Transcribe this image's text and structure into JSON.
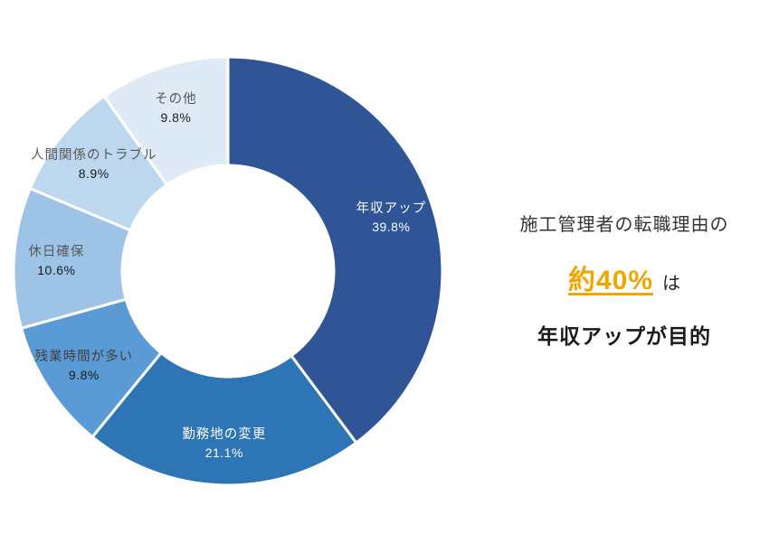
{
  "chart_data": {
    "type": "pie",
    "variant": "donut",
    "start_angle_deg": 0,
    "direction": "clockwise",
    "unit": "%",
    "segments": [
      {
        "label": "年収アップ",
        "value": 39.8,
        "display": "39.8%",
        "color": "#2F5597",
        "label_color": "#ffffff",
        "value_color": "#ffffff"
      },
      {
        "label": "勤務地の変更",
        "value": 21.1,
        "display": "21.1%",
        "color": "#2E75B6",
        "label_color": "#ffffff",
        "value_color": "#ffffff"
      },
      {
        "label": "残業時間が多い",
        "value": 9.8,
        "display": "9.8%",
        "color": "#5B9BD5",
        "label_color": "#404040",
        "value_color": "#1a1a1a"
      },
      {
        "label": "休日確保",
        "value": 10.6,
        "display": "10.6%",
        "color": "#9DC3E6",
        "label_color": "#595959",
        "value_color": "#1a1a1a"
      },
      {
        "label": "人間関係のトラブル",
        "value": 8.9,
        "display": "8.9%",
        "color": "#BDD7EE",
        "label_color": "#595959",
        "value_color": "#1a1a1a"
      },
      {
        "label": "その他",
        "value": 9.8,
        "display": "9.8%",
        "color": "#DEEBF7",
        "label_color": "#595959",
        "value_color": "#1a1a1a"
      }
    ]
  },
  "annotation": {
    "line1": "施工管理者の転職理由の",
    "highlight": "約40%",
    "particle": "は",
    "line3_bold": "年収アップ",
    "line3_rest": "が目的",
    "highlight_color": "#F0A500"
  }
}
